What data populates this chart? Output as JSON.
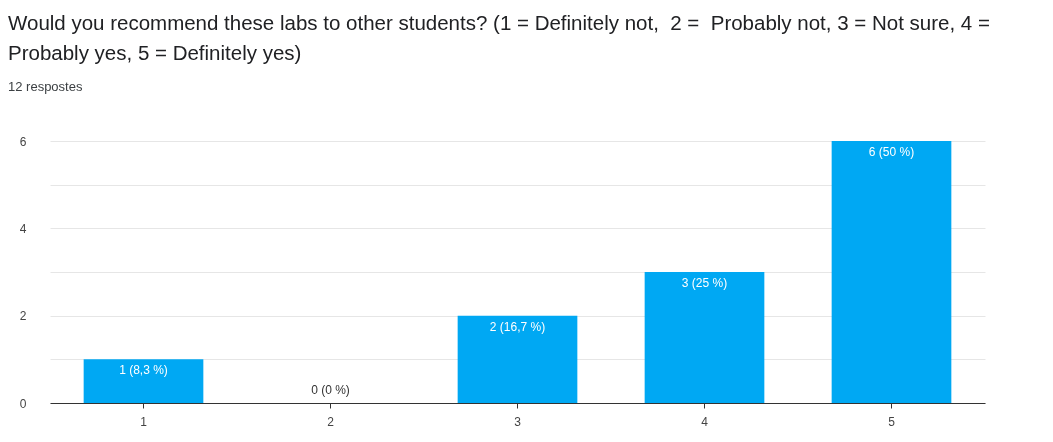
{
  "chart_data": {
    "type": "bar",
    "title": "Would you recommend these labs to other students? (1 = Definitely not,  2 =  Probably not, 3 = Not sure, 4 =   Probably yes, 5 = Definitely yes)",
    "subtitle": "12 respostes",
    "categories": [
      "1",
      "2",
      "3",
      "4",
      "5"
    ],
    "values": [
      1,
      0,
      2,
      3,
      6
    ],
    "value_labels": [
      "1 (8,3 %)",
      "0 (0 %)",
      "2 (16,7 %)",
      "3 (25 %)",
      "6 (50 %)"
    ],
    "color": "#00a8f3",
    "ylim": [
      0,
      6
    ],
    "yticks": [
      0,
      {
        "value": 1,
        "label": null
      },
      2,
      {
        "value": 3,
        "label": null
      },
      4,
      {
        "value": 5,
        "label": null
      },
      6
    ],
    "grid": "y"
  }
}
